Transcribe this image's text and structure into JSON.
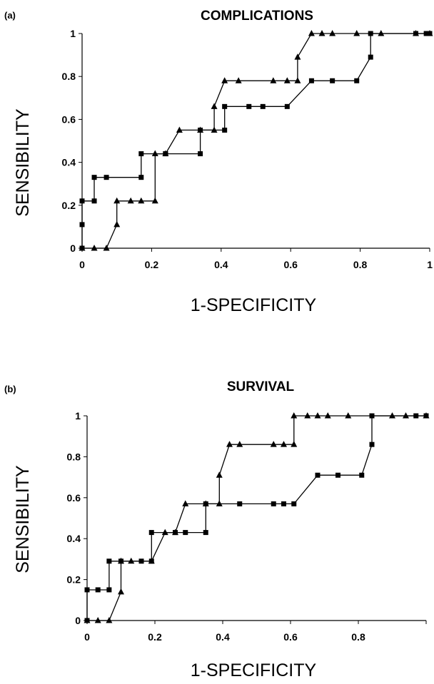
{
  "chart_data": [
    {
      "type": "line",
      "panel_label": "(a)",
      "title": "COMPLICATIONS",
      "xlabel": "1-SPECIFICITY",
      "ylabel": "SENSIBILITY",
      "xlim": [
        0,
        1
      ],
      "ylim": [
        0,
        1
      ],
      "x_ticks": [
        "0",
        "0.2",
        "0.4",
        "0.6",
        "0.8",
        "1"
      ],
      "y_ticks": [
        "0",
        "0.2",
        "0.4",
        "0.6",
        "0.8",
        "1"
      ],
      "grid": false,
      "legend": "none",
      "series": [
        {
          "marker": "square",
          "x": [
            0,
            0,
            0,
            0.035,
            0.035,
            0.07,
            0.17,
            0.17,
            0.24,
            0.24,
            0.34,
            0.34,
            0.41,
            0.41,
            0.48,
            0.52,
            0.59,
            0.66,
            0.72,
            0.79,
            0.83,
            0.83,
            0.96,
            0.99,
            1.0
          ],
          "y": [
            0,
            0.11,
            0.22,
            0.22,
            0.33,
            0.33,
            0.33,
            0.44,
            0.44,
            0.44,
            0.44,
            0.55,
            0.55,
            0.66,
            0.66,
            0.66,
            0.66,
            0.78,
            0.78,
            0.78,
            0.89,
            1.0,
            1.0,
            1.0,
            1.0
          ]
        },
        {
          "marker": "triangle",
          "x": [
            0,
            0.035,
            0.07,
            0.1,
            0.1,
            0.14,
            0.17,
            0.21,
            0.21,
            0.24,
            0.28,
            0.34,
            0.38,
            0.38,
            0.41,
            0.45,
            0.55,
            0.59,
            0.62,
            0.62,
            0.66,
            0.69,
            0.72,
            0.79,
            0.86,
            0.96,
            1.0
          ],
          "y": [
            0,
            0,
            0,
            0.11,
            0.22,
            0.22,
            0.22,
            0.22,
            0.44,
            0.44,
            0.55,
            0.55,
            0.55,
            0.66,
            0.78,
            0.78,
            0.78,
            0.78,
            0.78,
            0.89,
            1.0,
            1.0,
            1.0,
            1.0,
            1.0,
            1.0,
            1.0
          ]
        }
      ]
    },
    {
      "type": "line",
      "panel_label": "(b)",
      "title": "SURVIVAL",
      "xlabel": "1-SPECIFICITY",
      "ylabel": "SENSIBILITY",
      "xlim": [
        0,
        1
      ],
      "ylim": [
        0,
        1
      ],
      "x_ticks": [
        "0",
        "0.2",
        "0.4",
        "0.6",
        "0.8",
        ""
      ],
      "y_ticks": [
        "0",
        "0.2",
        "0.4",
        "0.6",
        "0.8",
        "1"
      ],
      "grid": false,
      "legend": "none",
      "series": [
        {
          "marker": "square",
          "x": [
            0,
            0,
            0.032,
            0.065,
            0.065,
            0.1,
            0.16,
            0.19,
            0.19,
            0.26,
            0.29,
            0.35,
            0.35,
            0.45,
            0.55,
            0.58,
            0.61,
            0.68,
            0.74,
            0.81,
            0.84,
            0.84,
            0.97,
            1.0
          ],
          "y": [
            0,
            0.15,
            0.15,
            0.15,
            0.29,
            0.29,
            0.29,
            0.29,
            0.43,
            0.43,
            0.43,
            0.43,
            0.57,
            0.57,
            0.57,
            0.57,
            0.57,
            0.71,
            0.71,
            0.71,
            0.86,
            1.0,
            1.0,
            1.0
          ]
        },
        {
          "marker": "triangle",
          "x": [
            0,
            0.032,
            0.065,
            0.1,
            0.1,
            0.13,
            0.19,
            0.23,
            0.26,
            0.29,
            0.35,
            0.39,
            0.39,
            0.42,
            0.45,
            0.55,
            0.58,
            0.61,
            0.61,
            0.65,
            0.68,
            0.71,
            0.77,
            0.9,
            0.94,
            1.0
          ],
          "y": [
            0,
            0,
            0,
            0.14,
            0.29,
            0.29,
            0.29,
            0.43,
            0.43,
            0.57,
            0.57,
            0.57,
            0.71,
            0.86,
            0.86,
            0.86,
            0.86,
            0.86,
            1.0,
            1.0,
            1.0,
            1.0,
            1.0,
            1.0,
            1.0,
            1.0
          ]
        }
      ]
    }
  ]
}
